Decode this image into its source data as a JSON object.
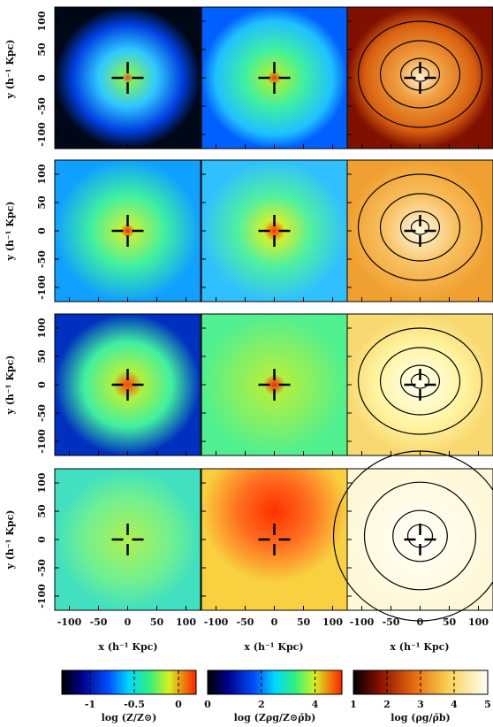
{
  "figure": {
    "y_label": "y (h⁻¹ Kpc)",
    "x_label": "x (h⁻¹ Kpc)",
    "xlim": [
      -125,
      125
    ],
    "ylim": [
      -125,
      125
    ],
    "xticks": [
      -100,
      -50,
      0,
      50,
      100
    ],
    "yticks": [
      -100,
      -50,
      0,
      50,
      100
    ],
    "colorbars": [
      {
        "label": "log (Z/Z⊙)",
        "lim": [
          -1.32,
          0.2
        ],
        "ticks": [
          -1,
          -0.5,
          0
        ]
      },
      {
        "label": "log (Zρg/Z⊙ρ̄b)",
        "lim": [
          0,
          5
        ],
        "ticks": [
          0,
          2,
          4
        ]
      },
      {
        "label": "log (ρg/ρ̄b)",
        "lim": [
          1,
          5
        ],
        "ticks": [
          1,
          2,
          3,
          4,
          5
        ]
      }
    ]
  }
}
